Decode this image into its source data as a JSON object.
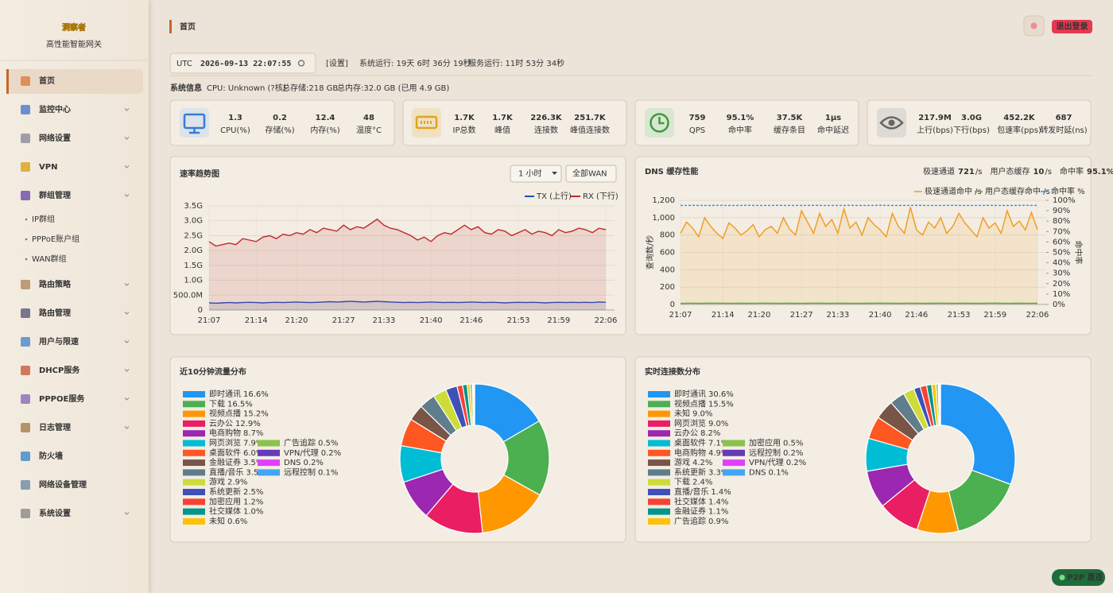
{
  "brand": {
    "title": "洞察者",
    "subtitle": "高性能智能网关"
  },
  "nav": [
    {
      "label": "首页",
      "active": true
    },
    {
      "label": "监控中心",
      "expandable": true
    },
    {
      "label": "网络设置",
      "expandable": true
    },
    {
      "label": "VPN",
      "expandable": true
    },
    {
      "label": "群组管理",
      "expandable": true,
      "children": [
        "IP群组",
        "PPPoE账户组",
        "WAN群组"
      ]
    },
    {
      "label": "路由策略",
      "expandable": true
    },
    {
      "label": "路由管理",
      "expandable": true
    },
    {
      "label": "用户与限速",
      "expandable": true
    },
    {
      "label": "DHCP服务",
      "expandable": true
    },
    {
      "label": "PPPOE服务",
      "expandable": true
    },
    {
      "label": "日志管理",
      "expandable": true
    },
    {
      "label": "防火墙"
    },
    {
      "label": "网络设备管理"
    },
    {
      "label": "系统设置",
      "expandable": true
    }
  ],
  "header": {
    "title": "首页",
    "logout": "退出登录"
  },
  "status": {
    "zone": "UTC",
    "time": "2026-09-13 22:07:55",
    "settings": "[设置]",
    "system_uptime": "系统运行: 19天 6时 36分 19秒",
    "service_uptime": "服务运行: 11时 53分 34秒"
  },
  "sysinfo": {
    "label": "系统信息",
    "cpu": "CPU: Unknown (?核)",
    "storage": "总存储:218 GB",
    "memory": "总内存:32.0 GB (已用 4.9 GB)"
  },
  "stats": [
    {
      "items": [
        {
          "value": "1.3",
          "label": "CPU(%)"
        },
        {
          "value": "0.2",
          "label": "存储(%)"
        },
        {
          "value": "12.4",
          "label": "内存(%)"
        },
        {
          "value": "48",
          "label": "温度°C"
        }
      ]
    },
    {
      "items": [
        {
          "value": "1.7K",
          "label": "IP总数"
        },
        {
          "value": "1.7K",
          "label": "峰值"
        },
        {
          "value": "226.3K",
          "label": "连接数"
        },
        {
          "value": "251.7K",
          "label": "峰值连接数"
        }
      ]
    },
    {
      "items": [
        {
          "value": "759",
          "label": "QPS"
        },
        {
          "value": "95.1%",
          "label": "命中率"
        },
        {
          "value": "37.5K",
          "label": "缓存条目"
        },
        {
          "value": "1µs",
          "label": "命中延迟"
        }
      ]
    },
    {
      "items": [
        {
          "value": "217.9M",
          "label": "上行(bps)"
        },
        {
          "value": "3.0G",
          "label": "下行(bps)"
        },
        {
          "value": "452.2K",
          "label": "包速率(pps)"
        },
        {
          "value": "687",
          "label": "转发时延(ns)"
        }
      ]
    }
  ],
  "badge": "P2P 直连",
  "chart_data": [
    {
      "type": "line",
      "title": "速率趋势图",
      "controls": [
        "1 小时",
        "全部WAN"
      ],
      "grid": true,
      "area": true,
      "categories": [
        "21:07",
        null,
        null,
        null,
        null,
        null,
        null,
        "21:14",
        null,
        null,
        null,
        null,
        null,
        "21:20",
        null,
        null,
        null,
        null,
        null,
        null,
        "21:27",
        null,
        null,
        null,
        null,
        null,
        "21:33",
        null,
        null,
        null,
        null,
        null,
        null,
        "21:40",
        null,
        null,
        null,
        null,
        null,
        "21:46",
        null,
        null,
        null,
        null,
        null,
        null,
        "21:53",
        null,
        null,
        null,
        null,
        null,
        "21:59",
        null,
        null,
        null,
        null,
        null,
        null,
        "22:06"
      ],
      "ylim": [
        0,
        3500000000
      ],
      "yticks": [
        0,
        {
          "value": 500000000,
          "label": "500.0M"
        },
        {
          "value": 1000000000,
          "label": "1.0G"
        },
        {
          "value": 1500000000,
          "label": "1.5G"
        },
        {
          "value": 2000000000,
          "label": "2.0G"
        },
        {
          "value": 2500000000,
          "label": "2.5G"
        },
        {
          "value": 3000000000,
          "label": "3.0G"
        },
        {
          "value": 3500000000,
          "label": "3.5G"
        }
      ],
      "series": [
        {
          "name": "TX (上行)",
          "color": "#1e4fc0",
          "values": [
            240000000.0,
            230000000.0,
            240000000.0,
            250000000.0,
            240000000.0,
            250000000.0,
            260000000.0,
            250000000.0,
            240000000.0,
            250000000.0,
            260000000.0,
            250000000.0,
            260000000.0,
            270000000.0,
            260000000.0,
            250000000.0,
            260000000.0,
            270000000.0,
            280000000.0,
            270000000.0,
            280000000.0,
            290000000.0,
            280000000.0,
            270000000.0,
            280000000.0,
            290000000.0,
            280000000.0,
            270000000.0,
            260000000.0,
            250000000.0,
            260000000.0,
            250000000.0,
            260000000.0,
            270000000.0,
            260000000.0,
            250000000.0,
            260000000.0,
            250000000.0,
            260000000.0,
            270000000.0,
            260000000.0,
            250000000.0,
            260000000.0,
            250000000.0,
            240000000.0,
            250000000.0,
            260000000.0,
            250000000.0,
            260000000.0,
            250000000.0,
            240000000.0,
            250000000.0,
            260000000.0,
            250000000.0,
            260000000.0,
            250000000.0,
            260000000.0,
            250000000.0,
            270000000.0,
            260000000.0
          ]
        },
        {
          "name": "RX (下行)",
          "color": "#c0282d",
          "values": [
            2300000000.0,
            2150000000.0,
            2200000000.0,
            2250000000.0,
            2200000000.0,
            2400000000.0,
            2350000000.0,
            2300000000.0,
            2450000000.0,
            2500000000.0,
            2400000000.0,
            2550000000.0,
            2500000000.0,
            2600000000.0,
            2550000000.0,
            2700000000.0,
            2600000000.0,
            2750000000.0,
            2700000000.0,
            2650000000.0,
            2850000000.0,
            2700000000.0,
            2800000000.0,
            2750000000.0,
            2900000000.0,
            3050000000.0,
            2850000000.0,
            2750000000.0,
            2700000000.0,
            2600000000.0,
            2500000000.0,
            2350000000.0,
            2450000000.0,
            2300000000.0,
            2500000000.0,
            2600000000.0,
            2550000000.0,
            2700000000.0,
            2850000000.0,
            2700000000.0,
            2800000000.0,
            2600000000.0,
            2550000000.0,
            2700000000.0,
            2650000000.0,
            2500000000.0,
            2600000000.0,
            2700000000.0,
            2550000000.0,
            2650000000.0,
            2600000000.0,
            2500000000.0,
            2700000000.0,
            2600000000.0,
            2650000000.0,
            2750000000.0,
            2700000000.0,
            2600000000.0,
            2750000000.0,
            2700000000.0
          ]
        }
      ]
    },
    {
      "type": "line",
      "title": "DNS 缓存性能",
      "grid": true,
      "area": true,
      "summary": [
        {
          "label": "极速通道",
          "value": "721",
          "unit": "/s",
          "color": "#f29a1a"
        },
        {
          "label": "用户态缓存",
          "value": "10",
          "unit": "/s",
          "color": "#4caf50"
        },
        {
          "label": "命中率",
          "value": "95.1%",
          "color": "#2196f3"
        }
      ],
      "ylabel": "查询数/秒",
      "y2label": "命中率",
      "categories": [
        "21:07",
        null,
        null,
        null,
        null,
        null,
        null,
        "21:14",
        null,
        null,
        null,
        null,
        null,
        "21:20",
        null,
        null,
        null,
        null,
        null,
        null,
        "21:27",
        null,
        null,
        null,
        null,
        null,
        "21:33",
        null,
        null,
        null,
        null,
        null,
        null,
        "21:40",
        null,
        null,
        null,
        null,
        null,
        "21:46",
        null,
        null,
        null,
        null,
        null,
        null,
        "21:53",
        null,
        null,
        null,
        null,
        null,
        "21:59",
        null,
        null,
        null,
        null,
        null,
        null,
        "22:06"
      ],
      "ylim": [
        0,
        1200
      ],
      "yticks": [
        0,
        200,
        400,
        600,
        800,
        {
          "value": 1000,
          "label": "1,000"
        },
        {
          "value": 1200,
          "label": "1,200"
        }
      ],
      "y2lim": [
        0,
        100
      ],
      "y2ticks": [
        {
          "value": 0,
          "label": "0%"
        },
        {
          "value": 10,
          "label": "10%"
        },
        {
          "value": 20,
          "label": "20%"
        },
        {
          "value": 30,
          "label": "30%"
        },
        {
          "value": 40,
          "label": "40%"
        },
        {
          "value": 50,
          "label": "50%"
        },
        {
          "value": 60,
          "label": "60%"
        },
        {
          "value": 70,
          "label": "70%"
        },
        {
          "value": 80,
          "label": "80%"
        },
        {
          "value": 90,
          "label": "90%"
        },
        {
          "value": 100,
          "label": "100%"
        }
      ],
      "series": [
        {
          "name": "极速通道命中 /s",
          "color": "#f29a1a",
          "values": [
            820,
            950,
            880,
            780,
            1000,
            900,
            820,
            760,
            940,
            880,
            800,
            850,
            920,
            780,
            860,
            900,
            820,
            1000,
            870,
            800,
            1080,
            950,
            820,
            1050,
            900,
            980,
            820,
            1100,
            880,
            950,
            800,
            1000,
            920,
            860,
            780,
            1050,
            900,
            820,
            1120,
            860,
            800,
            950,
            880,
            1000,
            820,
            900,
            1050,
            940,
            860,
            780,
            1000,
            880,
            940,
            820,
            1080,
            900,
            960,
            860,
            1060,
            860
          ]
        },
        {
          "name": "用户态缓存命中 /s",
          "color": "#5aaa3c",
          "values": [
            12,
            14,
            15,
            13,
            14,
            16,
            15,
            14,
            13,
            14,
            15,
            14,
            13,
            15,
            16,
            14,
            13,
            14,
            15,
            14,
            13,
            14,
            15,
            16,
            14,
            13,
            14,
            15,
            14,
            13,
            14,
            15,
            14,
            16,
            15,
            14,
            13,
            14,
            15,
            14,
            13,
            15,
            14,
            16,
            14,
            13,
            14,
            15,
            14,
            13,
            14,
            15,
            16,
            14,
            13,
            14,
            15,
            14,
            13,
            14
          ]
        },
        {
          "name": "命中率 %",
          "color": "#2196f3",
          "axis": "y2",
          "dashed": true,
          "values": [
            95.1,
            95.1,
            95.2,
            95.1,
            95.1,
            95.1,
            95.2,
            95.1,
            95.1,
            95.1,
            95.1,
            95.2,
            95.1,
            95.1,
            95.1,
            95.1,
            95.2,
            95.1,
            95.1,
            95.1,
            95.1,
            95.1,
            95.2,
            95.1,
            95.1,
            95.1,
            95.1,
            95.1,
            95.2,
            95.1,
            95.1,
            95.1,
            95.1,
            95.2,
            95.1,
            95.1,
            95.1,
            95.1,
            95.1,
            95.2,
            95.1,
            95.1,
            95.1,
            95.1,
            95.1,
            95.2,
            95.1,
            95.1,
            95.1,
            95.1,
            95.1,
            95.2,
            95.1,
            95.1,
            95.1,
            95.1,
            95.1,
            95.2,
            95.1,
            95.1
          ]
        }
      ]
    },
    {
      "type": "pie",
      "donut": true,
      "title": "近10分钟流量分布",
      "categories": [
        "即时通讯",
        "下载",
        "视频点播",
        "云办公",
        "电商购物",
        "网页浏览",
        "桌面软件",
        "金融证券",
        "直播/音乐",
        "游戏",
        "系统更新",
        "加密应用",
        "社交媒体",
        "未知",
        "广告追踪",
        "VPN/代理",
        "DNS",
        "远程控制"
      ],
      "values": [
        16.6,
        16.5,
        15.2,
        12.9,
        8.7,
        7.9,
        6.0,
        3.5,
        3.5,
        2.9,
        2.5,
        1.2,
        1.0,
        0.6,
        0.5,
        0.2,
        0.2,
        0.1
      ],
      "value_labels": [
        "16.6%",
        "16.5%",
        "15.2%",
        "12.9%",
        "8.7%",
        "7.9%",
        "6.0%",
        "3.5%",
        "3.5%",
        "2.9%",
        "2.5%",
        "1.2%",
        "1.0%",
        "0.6%",
        "0.5%",
        "0.2%",
        "0.2%",
        "0.1%"
      ],
      "colors": [
        "#2196f3",
        "#4caf50",
        "#ff9800",
        "#e91e63",
        "#9c27b0",
        "#00bcd4",
        "#ff5722",
        "#795548",
        "#607d8b",
        "#cddc39",
        "#3f51b5",
        "#f44336",
        "#009688",
        "#ffc107",
        "#8bc34a",
        "#673ab7",
        "#e040fb",
        "#42a5f5"
      ]
    },
    {
      "type": "pie",
      "donut": true,
      "title": "实时连接数分布",
      "categories": [
        "即时通讯",
        "视频点播",
        "未知",
        "网页浏览",
        "云办公",
        "桌面软件",
        "电商购物",
        "游戏",
        "系统更新",
        "下载",
        "直播/音乐",
        "社交媒体",
        "金融证券",
        "广告追踪",
        "加密应用",
        "远程控制",
        "VPN/代理",
        "DNS"
      ],
      "values": [
        30.6,
        15.5,
        9.0,
        9.0,
        8.2,
        7.1,
        4.9,
        4.2,
        3.3,
        2.4,
        1.4,
        1.4,
        1.1,
        0.9,
        0.5,
        0.2,
        0.2,
        0.1
      ],
      "value_labels": [
        "30.6%",
        "15.5%",
        "9.0%",
        "9.0%",
        "8.2%",
        "7.1%",
        "4.9%",
        "4.2%",
        "3.3%",
        "2.4%",
        "1.4%",
        "1.4%",
        "1.1%",
        "0.9%",
        "0.5%",
        "0.2%",
        "0.2%",
        "0.1%"
      ],
      "colors": [
        "#2196f3",
        "#4caf50",
        "#ff9800",
        "#e91e63",
        "#9c27b0",
        "#00bcd4",
        "#ff5722",
        "#795548",
        "#607d8b",
        "#cddc39",
        "#3f51b5",
        "#f44336",
        "#009688",
        "#ffc107",
        "#8bc34a",
        "#673ab7",
        "#e040fb",
        "#42a5f5"
      ]
    }
  ]
}
